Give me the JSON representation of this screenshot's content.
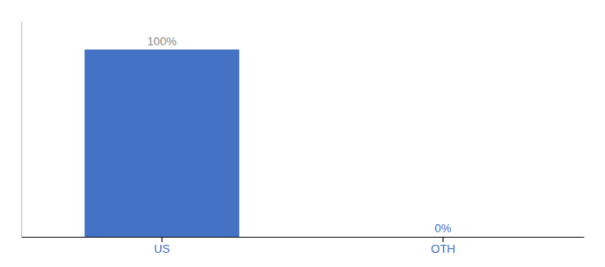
{
  "chart_data": {
    "type": "bar",
    "categories": [
      "US",
      "OTH"
    ],
    "values": [
      100,
      0
    ],
    "value_labels": [
      "100%",
      "0%"
    ],
    "color": "#4472c4",
    "ylim": [
      0,
      115
    ],
    "data_labels": true,
    "tick_labels": "x",
    "grid": false
  }
}
